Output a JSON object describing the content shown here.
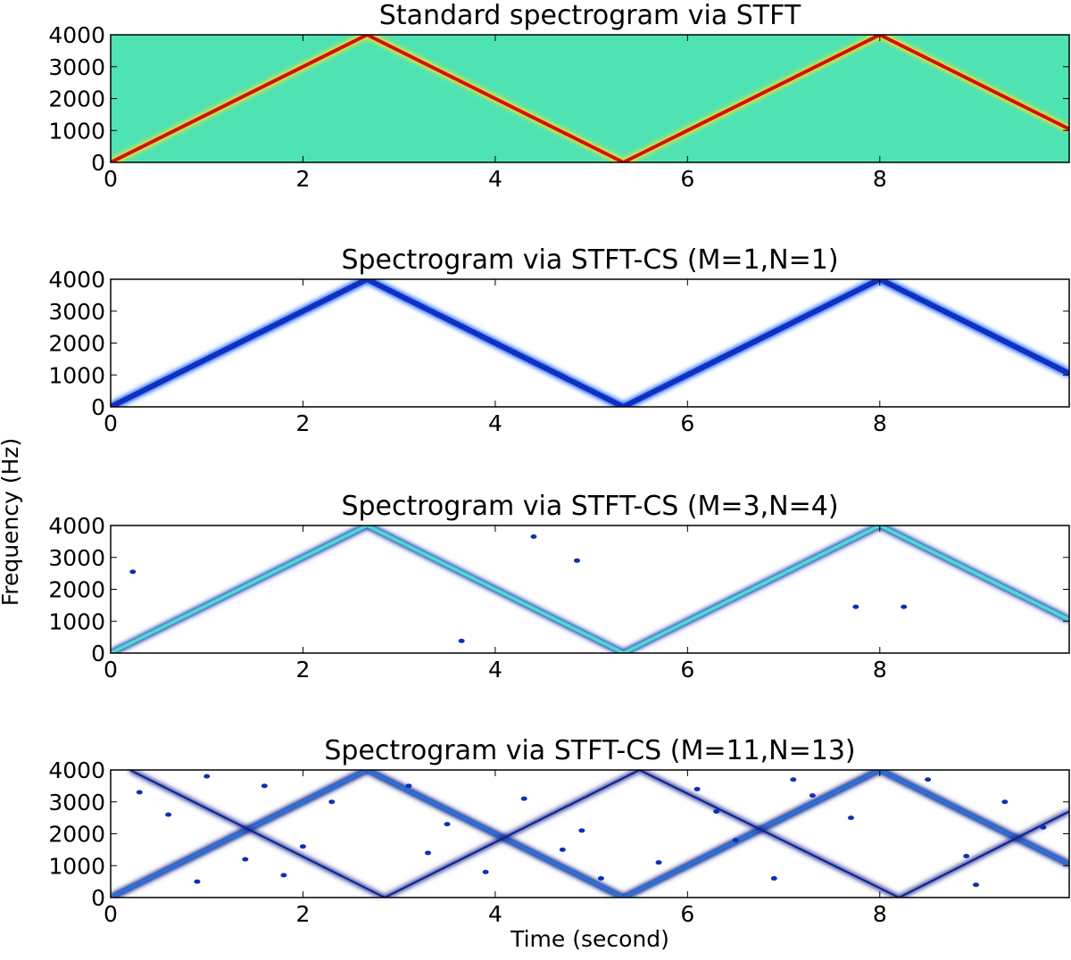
{
  "ylabel": "Frequency (Hz)",
  "chart_data": [
    {
      "type": "spectrogram",
      "title": "Standard spectrogram via STFT",
      "background": "#4fe3b4",
      "xlim": [
        0,
        9.97
      ],
      "ylim": [
        0,
        4000
      ],
      "xticks": [
        0,
        2,
        4,
        6,
        8
      ],
      "yticks": [
        0,
        1000,
        2000,
        3000,
        4000
      ],
      "series": [
        {
          "mode": "line",
          "color": "#d01010",
          "glow": "#ffe020",
          "linewidth": 4,
          "x": [
            0,
            2.667,
            5.333,
            8,
            9.97
          ],
          "values": [
            0,
            4000,
            0,
            4000,
            1045
          ]
        }
      ]
    },
    {
      "type": "spectrogram",
      "title": "Spectrogram via STFT-CS (M=1,N=1)",
      "background": "#ffffff",
      "xlim": [
        0,
        9.97
      ],
      "ylim": [
        0,
        4000
      ],
      "xticks": [
        0,
        2,
        4,
        6,
        8
      ],
      "yticks": [
        0,
        1000,
        2000,
        3000,
        4000
      ],
      "series": [
        {
          "mode": "line",
          "color": "#1030c0",
          "glow": "#3070ff",
          "linewidth": 6,
          "x": [
            0,
            2.667,
            5.333,
            8,
            9.97
          ],
          "values": [
            0,
            4000,
            0,
            4000,
            1045
          ]
        }
      ]
    },
    {
      "type": "spectrogram",
      "title": "Spectrogram via STFT-CS (M=3,N=4)",
      "background": "#ffffff",
      "xlim": [
        0,
        9.97
      ],
      "ylim": [
        0,
        4000
      ],
      "xticks": [
        0,
        2,
        4,
        6,
        8
      ],
      "yticks": [
        0,
        1000,
        2000,
        3000,
        4000
      ],
      "series": [
        {
          "mode": "line",
          "color": "#50d8c8",
          "glow": "#1040c0",
          "linewidth": 4,
          "x": [
            0,
            2.667,
            5.333,
            8,
            9.97
          ],
          "values": [
            0,
            4000,
            0,
            4000,
            1045
          ]
        },
        {
          "mode": "markers",
          "color": "#1030b0",
          "x": [
            0.23,
            4.4,
            4.85,
            3.65,
            7.75,
            8.25
          ],
          "values": [
            2550,
            3650,
            2900,
            380,
            1450,
            1450
          ]
        }
      ]
    },
    {
      "type": "spectrogram",
      "title": "Spectrogram via STFT-CS (M=11,N=13)",
      "xlabel": "Time (second)",
      "background": "#ffffff",
      "xlim": [
        0,
        9.97
      ],
      "ylim": [
        0,
        4000
      ],
      "xticks": [
        0,
        2,
        4,
        6,
        8
      ],
      "yticks": [
        0,
        1000,
        2000,
        3000,
        4000
      ],
      "series": [
        {
          "mode": "line",
          "color": "#2a70d8",
          "glow": "#0a208a",
          "linewidth": 4,
          "x": [
            0,
            2.667,
            5.333,
            8,
            9.97
          ],
          "values": [
            0,
            4000,
            0,
            4000,
            1045
          ]
        },
        {
          "mode": "line",
          "color": "#10208a",
          "glow": "#10208a",
          "linewidth": 2,
          "x": [
            0.2,
            2.85,
            5.5,
            8.2,
            9.97
          ],
          "values": [
            4000,
            0,
            4000,
            0,
            2700
          ]
        },
        {
          "mode": "markers",
          "color": "#1030b0",
          "x": [
            0.3,
            0.6,
            1.0,
            1.4,
            1.8,
            2.3,
            3.1,
            3.5,
            3.9,
            4.3,
            4.7,
            5.1,
            5.7,
            6.1,
            6.5,
            6.9,
            7.3,
            7.7,
            8.5,
            8.9,
            9.3,
            9.7,
            0.9,
            3.3,
            6.3,
            9.0,
            1.6,
            4.9,
            7.1,
            2.0
          ],
          "values": [
            3300,
            2600,
            3800,
            1200,
            700,
            3000,
            3500,
            2300,
            800,
            3100,
            1500,
            600,
            1100,
            3400,
            1800,
            600,
            3200,
            2500,
            3700,
            1300,
            3000,
            2200,
            500,
            1400,
            2700,
            400,
            3500,
            2100,
            3700,
            1600
          ]
        }
      ]
    }
  ]
}
